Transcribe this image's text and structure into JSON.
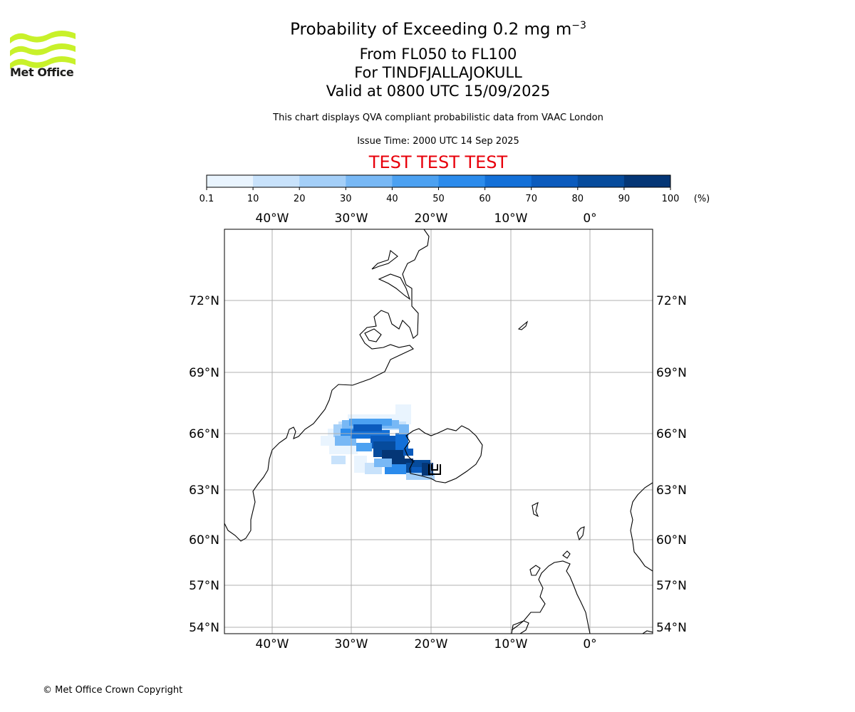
{
  "header": {
    "title_prefix": "Probability of Exceeding 0.2 mg m",
    "title_exponent": "−3",
    "level_range": "From FL050 to FL100",
    "volcano": "For TINDFJALLAJOKULL",
    "valid_time": "Valid at 0800 UTC 15/09/2025",
    "description": "This chart displays QVA compliant probabilistic data from VAAC London",
    "issue_time": "Issue Time: 2000 UTC 14 Sep 2025",
    "test_banner": "TEST TEST TEST"
  },
  "logo": {
    "text": "Met Office",
    "color": "#c8f12a"
  },
  "colorbar": {
    "ticks": [
      "0.1",
      "10",
      "20",
      "30",
      "40",
      "50",
      "60",
      "70",
      "80",
      "90",
      "100"
    ],
    "unit": "(%)",
    "colors": [
      "#e9f4fe",
      "#c8e2fb",
      "#a4cff8",
      "#78b8f5",
      "#4ca1f1",
      "#2b8bec",
      "#1370d8",
      "#0b5bbd",
      "#064b9c",
      "#043676"
    ]
  },
  "map": {
    "lon_labels": [
      "40°W",
      "30°W",
      "20°W",
      "10°W",
      "0°"
    ],
    "lat_labels": [
      "72°N",
      "69°N",
      "66°N",
      "63°N",
      "60°N",
      "57°N",
      "54°N"
    ]
  },
  "footer": {
    "copyright": "© Met Office Crown Copyright"
  }
}
